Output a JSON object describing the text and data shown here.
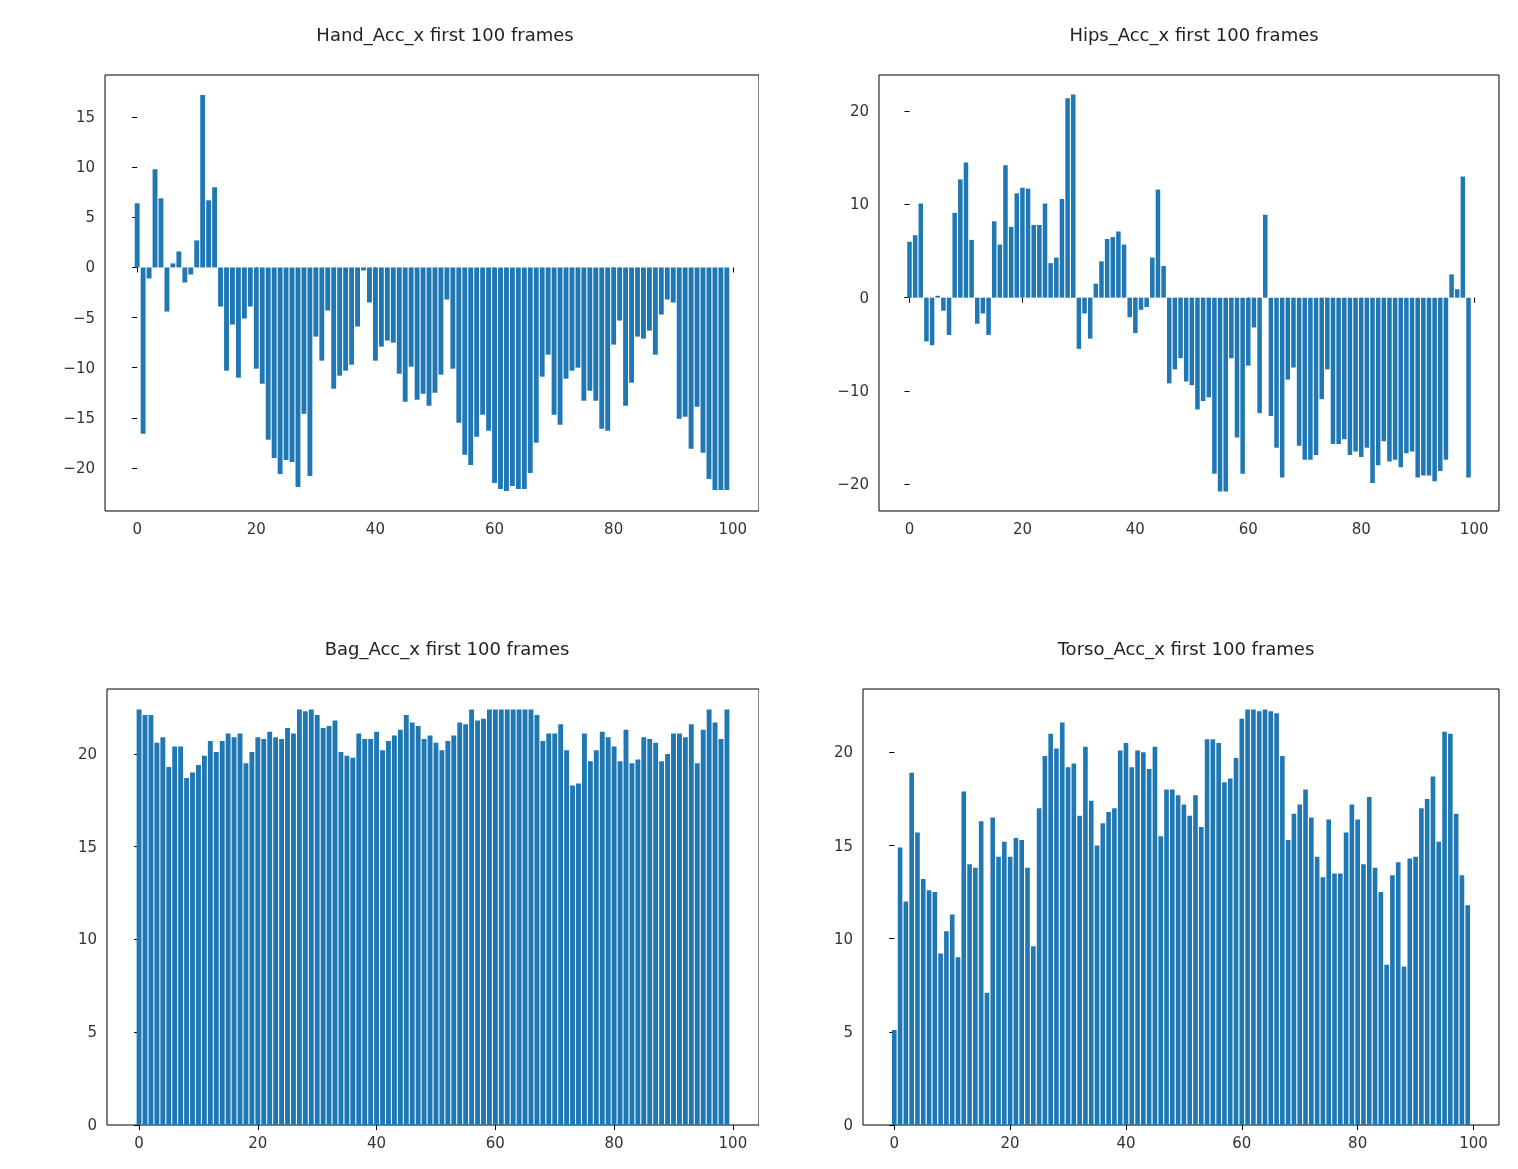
{
  "chart_data": [
    {
      "type": "bar",
      "title": "Hand_Acc_x first 100 frames",
      "color": "#1f77b4",
      "grid": false,
      "xlim": [
        -5.4,
        104.4
      ],
      "xticks": [
        0,
        20,
        40,
        60,
        80,
        100
      ],
      "ylim": [
        -24.3,
        19.2
      ],
      "yticks": [
        -20,
        -15,
        -10,
        -5,
        0,
        5,
        10,
        15
      ],
      "x": [
        0,
        1,
        2,
        3,
        4,
        5,
        6,
        7,
        8,
        9,
        10,
        11,
        12,
        13,
        14,
        15,
        16,
        17,
        18,
        19,
        20,
        21,
        22,
        23,
        24,
        25,
        26,
        27,
        28,
        29,
        30,
        31,
        32,
        33,
        34,
        35,
        36,
        37,
        38,
        39,
        40,
        41,
        42,
        43,
        44,
        45,
        46,
        47,
        48,
        49,
        50,
        51,
        52,
        53,
        54,
        55,
        56,
        57,
        58,
        59,
        60,
        61,
        62,
        63,
        64,
        65,
        66,
        67,
        68,
        69,
        70,
        71,
        72,
        73,
        74,
        75,
        76,
        77,
        78,
        79,
        80,
        81,
        82,
        83,
        84,
        85,
        86,
        87,
        88,
        89,
        90,
        91,
        92,
        93,
        94,
        95,
        96,
        97,
        98,
        99
      ],
      "values": [
        6.4,
        -16.6,
        -1.1,
        9.8,
        6.9,
        -4.4,
        0.4,
        1.6,
        -1.5,
        -0.7,
        2.7,
        17.2,
        6.7,
        8.0,
        -3.9,
        -10.3,
        -5.7,
        -11.0,
        -5.1,
        -3.9,
        -10.1,
        -11.6,
        -17.2,
        -19.0,
        -20.6,
        -19.2,
        -19.4,
        -21.9,
        -14.6,
        -20.8,
        -6.9,
        -9.3,
        -4.3,
        -12.1,
        -10.8,
        -10.3,
        -9.7,
        -5.9,
        -0.3,
        -3.5,
        -9.3,
        -7.9,
        -7.3,
        -7.5,
        -10.6,
        -13.4,
        -9.9,
        -13.2,
        -12.6,
        -13.8,
        -12.5,
        -10.7,
        -3.2,
        -10.1,
        -15.5,
        -18.7,
        -19.7,
        -16.9,
        -14.7,
        -16.3,
        -21.5,
        -22.1,
        -22.3,
        -21.8,
        -22.1,
        -22.1,
        -20.5,
        -17.5,
        -10.9,
        -8.7,
        -14.7,
        -15.7,
        -11.1,
        -10.3,
        -10.0,
        -13.3,
        -12.3,
        -13.3,
        -16.1,
        -16.3,
        -7.7,
        -5.3,
        -13.8,
        -11.5,
        -6.9,
        -7.1,
        -6.3,
        -8.7,
        -4.7,
        -3.2,
        -3.5,
        -15.1,
        -14.9,
        -18.1,
        -13.9,
        -18.5,
        -21.1,
        -22.2,
        -22.2,
        -22.2
      ]
    },
    {
      "type": "bar",
      "title": "Hips_Acc_x first 100 frames",
      "color": "#1f77b4",
      "grid": false,
      "xlim": [
        -5.4,
        104.4
      ],
      "xticks": [
        0,
        20,
        40,
        60,
        80,
        100
      ],
      "ylim": [
        -22.9,
        23.9
      ],
      "yticks": [
        -20,
        -10,
        0,
        10,
        20
      ],
      "x": [
        0,
        1,
        2,
        3,
        4,
        5,
        6,
        7,
        8,
        9,
        10,
        11,
        12,
        13,
        14,
        15,
        16,
        17,
        18,
        19,
        20,
        21,
        22,
        23,
        24,
        25,
        26,
        27,
        28,
        29,
        30,
        31,
        32,
        33,
        34,
        35,
        36,
        37,
        38,
        39,
        40,
        41,
        42,
        43,
        44,
        45,
        46,
        47,
        48,
        49,
        50,
        51,
        52,
        53,
        54,
        55,
        56,
        57,
        58,
        59,
        60,
        61,
        62,
        63,
        64,
        65,
        66,
        67,
        68,
        69,
        70,
        71,
        72,
        73,
        74,
        75,
        76,
        77,
        78,
        79,
        80,
        81,
        82,
        83,
        84,
        85,
        86,
        87,
        88,
        89,
        90,
        91,
        92,
        93,
        94,
        95,
        96,
        97,
        98,
        99
      ],
      "values": [
        6.0,
        6.7,
        10.1,
        -4.7,
        -5.1,
        0.2,
        -1.4,
        -4.0,
        9.1,
        12.7,
        14.5,
        6.2,
        -2.8,
        -1.7,
        -4.0,
        8.2,
        5.7,
        14.2,
        7.6,
        11.2,
        11.8,
        11.7,
        7.8,
        7.8,
        10.1,
        3.7,
        4.3,
        10.6,
        21.4,
        21.8,
        -5.5,
        -1.7,
        -4.4,
        1.5,
        3.9,
        6.3,
        6.5,
        7.1,
        5.7,
        -2.1,
        -3.8,
        -1.3,
        -1.0,
        4.3,
        11.6,
        3.4,
        -9.2,
        -7.7,
        -6.5,
        -9.0,
        -9.4,
        -12.0,
        -11.1,
        -10.7,
        -18.9,
        -20.8,
        -20.8,
        -6.5,
        -15.0,
        -18.9,
        -7.3,
        -3.2,
        -12.4,
        8.9,
        -12.7,
        -16.1,
        -19.3,
        -8.8,
        -7.5,
        -15.9,
        -17.4,
        -17.4,
        -16.9,
        -10.9,
        -7.7,
        -15.7,
        -15.7,
        -15.2,
        -16.9,
        -16.5,
        -17.1,
        -16.1,
        -19.9,
        -18.0,
        -15.4,
        -17.6,
        -17.4,
        -18.2,
        -16.7,
        -16.5,
        -19.3,
        -19.1,
        -19.1,
        -19.7,
        -18.6,
        -17.4,
        2.5,
        0.9,
        13.0,
        -19.3
      ]
    },
    {
      "type": "bar",
      "title": "Bag_Acc_x first 100 frames",
      "color": "#1f77b4",
      "grid": false,
      "xlim": [
        -5.4,
        104.4
      ],
      "xticks": [
        0,
        20,
        40,
        60,
        80,
        100
      ],
      "ylim": [
        0,
        23.5
      ],
      "yticks": [
        0,
        5,
        10,
        15,
        20
      ],
      "x": [
        0,
        1,
        2,
        3,
        4,
        5,
        6,
        7,
        8,
        9,
        10,
        11,
        12,
        13,
        14,
        15,
        16,
        17,
        18,
        19,
        20,
        21,
        22,
        23,
        24,
        25,
        26,
        27,
        28,
        29,
        30,
        31,
        32,
        33,
        34,
        35,
        36,
        37,
        38,
        39,
        40,
        41,
        42,
        43,
        44,
        45,
        46,
        47,
        48,
        49,
        50,
        51,
        52,
        53,
        54,
        55,
        56,
        57,
        58,
        59,
        60,
        61,
        62,
        63,
        64,
        65,
        66,
        67,
        68,
        69,
        70,
        71,
        72,
        73,
        74,
        75,
        76,
        77,
        78,
        79,
        80,
        81,
        82,
        83,
        84,
        85,
        86,
        87,
        88,
        89,
        90,
        91,
        92,
        93,
        94,
        95,
        96,
        97,
        98,
        99
      ],
      "values": [
        22.4,
        22.1,
        22.1,
        20.6,
        20.9,
        19.3,
        20.4,
        20.4,
        18.7,
        19.0,
        19.4,
        19.9,
        20.7,
        20.1,
        20.7,
        21.1,
        20.9,
        21.1,
        19.5,
        20.1,
        20.9,
        20.8,
        21.2,
        20.9,
        20.8,
        21.4,
        21.1,
        22.4,
        22.3,
        22.4,
        22.1,
        21.4,
        21.5,
        21.8,
        20.1,
        19.9,
        19.8,
        21.1,
        20.8,
        20.8,
        21.2,
        20.2,
        20.7,
        21.0,
        21.3,
        22.1,
        21.7,
        21.5,
        20.8,
        21.0,
        20.6,
        20.2,
        20.7,
        21.0,
        21.7,
        21.6,
        22.4,
        21.8,
        21.9,
        22.4,
        22.4,
        22.4,
        22.4,
        22.4,
        22.4,
        22.4,
        22.4,
        22.1,
        20.7,
        21.1,
        21.1,
        21.6,
        20.2,
        18.3,
        18.4,
        21.1,
        19.6,
        20.2,
        21.2,
        20.9,
        20.4,
        19.6,
        21.3,
        19.5,
        19.7,
        20.9,
        20.8,
        20.6,
        19.6,
        20.0,
        21.1,
        21.1,
        20.9,
        21.6,
        19.5,
        21.3,
        22.4,
        21.7,
        20.8,
        22.4
      ]
    },
    {
      "type": "bar",
      "title": "Torso_Acc_x first 100 frames",
      "color": "#1f77b4",
      "grid": false,
      "xlim": [
        -5.4,
        104.4
      ],
      "xticks": [
        0,
        20,
        40,
        60,
        80,
        100
      ],
      "ylim": [
        0,
        23.4
      ],
      "yticks": [
        0,
        5,
        10,
        15,
        20
      ],
      "x": [
        0,
        1,
        2,
        3,
        4,
        5,
        6,
        7,
        8,
        9,
        10,
        11,
        12,
        13,
        14,
        15,
        16,
        17,
        18,
        19,
        20,
        21,
        22,
        23,
        24,
        25,
        26,
        27,
        28,
        29,
        30,
        31,
        32,
        33,
        34,
        35,
        36,
        37,
        38,
        39,
        40,
        41,
        42,
        43,
        44,
        45,
        46,
        47,
        48,
        49,
        50,
        51,
        52,
        53,
        54,
        55,
        56,
        57,
        58,
        59,
        60,
        61,
        62,
        63,
        64,
        65,
        66,
        67,
        68,
        69,
        70,
        71,
        72,
        73,
        74,
        75,
        76,
        77,
        78,
        79,
        80,
        81,
        82,
        83,
        84,
        85,
        86,
        87,
        88,
        89,
        90,
        91,
        92,
        93,
        94,
        95,
        96,
        97,
        98,
        99
      ],
      "values": [
        5.1,
        14.9,
        12.0,
        18.9,
        15.7,
        13.2,
        12.6,
        12.5,
        9.2,
        10.4,
        11.3,
        9.0,
        17.9,
        14.0,
        13.8,
        16.3,
        7.1,
        16.5,
        14.4,
        15.2,
        14.4,
        15.4,
        15.3,
        13.8,
        9.6,
        17.0,
        19.8,
        21.0,
        20.2,
        21.6,
        19.2,
        19.4,
        16.6,
        20.3,
        17.4,
        15.0,
        16.2,
        16.8,
        17.0,
        20.1,
        20.5,
        19.2,
        20.1,
        20.0,
        19.1,
        20.3,
        15.5,
        18.0,
        18.0,
        17.7,
        17.2,
        16.6,
        17.7,
        16.0,
        20.7,
        20.7,
        20.5,
        18.4,
        18.6,
        19.7,
        21.8,
        22.3,
        22.3,
        22.2,
        22.3,
        22.2,
        22.1,
        19.8,
        15.3,
        16.7,
        17.2,
        18.0,
        16.5,
        14.4,
        13.3,
        16.4,
        13.5,
        13.5,
        15.7,
        17.2,
        16.4,
        14.0,
        17.6,
        13.8,
        12.5,
        8.6,
        13.4,
        14.1,
        8.5,
        14.3,
        14.4,
        17.0,
        17.5,
        18.7,
        15.2,
        21.1,
        21.0,
        16.7,
        13.4,
        11.8
      ]
    }
  ]
}
